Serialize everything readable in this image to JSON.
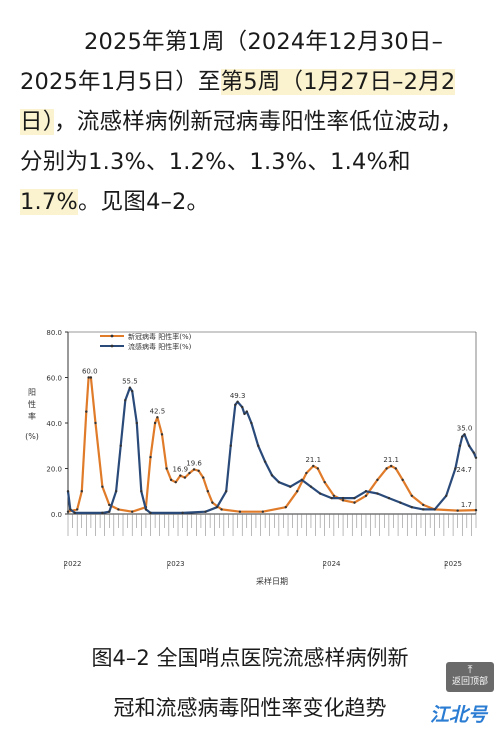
{
  "paragraph": {
    "seg1": "2025年第1周（2024年12月30日–2025年1月5日）至",
    "seg2": "第5周（1月27日–2月2日）",
    "seg3": "，流感样病例新冠病毒阳性率低位波动，分别为1.3%、1.2%、1.3%、1.4%和",
    "seg4": "1.7%",
    "seg5": "。见图4–2。"
  },
  "chart_data": {
    "type": "line",
    "ylabel": "阳性率(%)",
    "xlabel": "采样日期",
    "ylim": [
      0,
      80
    ],
    "yticks": [
      "0.0",
      "20.0",
      "40.0",
      "60.0",
      "80.0"
    ],
    "years": [
      "2022",
      "2023",
      "2024",
      "2025"
    ],
    "series": [
      {
        "name": "新冠病毒 阳性率(%)",
        "color": "#e07b2a",
        "points": [
          [
            0,
            1
          ],
          [
            4,
            2
          ],
          [
            6,
            10
          ],
          [
            8,
            45
          ],
          [
            9,
            60
          ],
          [
            10,
            60
          ],
          [
            12,
            40
          ],
          [
            15,
            12
          ],
          [
            18,
            4
          ],
          [
            22,
            2
          ],
          [
            28,
            1
          ],
          [
            34,
            3
          ],
          [
            36,
            25
          ],
          [
            38,
            40
          ],
          [
            39,
            42.5
          ],
          [
            41,
            35
          ],
          [
            43,
            20
          ],
          [
            45,
            15
          ],
          [
            47,
            14
          ],
          [
            49,
            16.9
          ],
          [
            51,
            16
          ],
          [
            53,
            18
          ],
          [
            55,
            19.6
          ],
          [
            57,
            19
          ],
          [
            59,
            16
          ],
          [
            61,
            10
          ],
          [
            63,
            5
          ],
          [
            67,
            2
          ],
          [
            75,
            1
          ],
          [
            85,
            1
          ],
          [
            95,
            3
          ],
          [
            100,
            10
          ],
          [
            104,
            18
          ],
          [
            107,
            21.1
          ],
          [
            109,
            20
          ],
          [
            112,
            14
          ],
          [
            116,
            8
          ],
          [
            120,
            6
          ],
          [
            125,
            5
          ],
          [
            130,
            8
          ],
          [
            135,
            15
          ],
          [
            139,
            20
          ],
          [
            141,
            21.1
          ],
          [
            143,
            20
          ],
          [
            146,
            15
          ],
          [
            150,
            8
          ],
          [
            155,
            4
          ],
          [
            160,
            2
          ],
          [
            170,
            1.5
          ],
          [
            178,
            1.7
          ]
        ]
      },
      {
        "name": "流感病毒 阳性率(%)",
        "color": "#2a4a7a",
        "points": [
          [
            0,
            10
          ],
          [
            1,
            2
          ],
          [
            3,
            0.5
          ],
          [
            15,
            0.5
          ],
          [
            18,
            1
          ],
          [
            21,
            10
          ],
          [
            23,
            30
          ],
          [
            25,
            50
          ],
          [
            27,
            55.5
          ],
          [
            28,
            54
          ],
          [
            30,
            40
          ],
          [
            32,
            10
          ],
          [
            34,
            2
          ],
          [
            36,
            0.5
          ],
          [
            50,
            0.5
          ],
          [
            60,
            1
          ],
          [
            65,
            3
          ],
          [
            69,
            10
          ],
          [
            71,
            30
          ],
          [
            73,
            48
          ],
          [
            74,
            49.3
          ],
          [
            76,
            47
          ],
          [
            77,
            44
          ],
          [
            78,
            45
          ],
          [
            80,
            40
          ],
          [
            83,
            30
          ],
          [
            86,
            23
          ],
          [
            89,
            17
          ],
          [
            92,
            14
          ],
          [
            97,
            12
          ],
          [
            102,
            15
          ],
          [
            106,
            12
          ],
          [
            110,
            9
          ],
          [
            115,
            7
          ],
          [
            120,
            7
          ],
          [
            125,
            7
          ],
          [
            130,
            10
          ],
          [
            135,
            9
          ],
          [
            140,
            7
          ],
          [
            145,
            5
          ],
          [
            150,
            3
          ],
          [
            155,
            2
          ],
          [
            160,
            2
          ],
          [
            165,
            8
          ],
          [
            169,
            20
          ],
          [
            171,
            30
          ],
          [
            172,
            34
          ],
          [
            173,
            35
          ],
          [
            175,
            30
          ],
          [
            177,
            27
          ],
          [
            178,
            24.7
          ]
        ]
      }
    ],
    "labels": [
      {
        "text": "60.0",
        "series": 0,
        "x": 9.5,
        "y": 60
      },
      {
        "text": "55.5",
        "series": 1,
        "x": 27,
        "y": 55.5
      },
      {
        "text": "42.5",
        "series": 0,
        "x": 39,
        "y": 42.5
      },
      {
        "text": "16.9",
        "series": 0,
        "x": 49,
        "y": 16.9
      },
      {
        "text": "19.6",
        "series": 0,
        "x": 55,
        "y": 19.6
      },
      {
        "text": "49.3",
        "series": 1,
        "x": 74,
        "y": 49.3
      },
      {
        "text": "21.1",
        "series": 0,
        "x": 107,
        "y": 21.1
      },
      {
        "text": "21.1",
        "series": 0,
        "x": 141,
        "y": 21.1
      },
      {
        "text": "35.0",
        "series": 1,
        "x": 173,
        "y": 35
      },
      {
        "text": "24.7",
        "series": 1,
        "x": 178,
        "y": 24.7
      },
      {
        "text": "1.7",
        "series": 0,
        "x": 178,
        "y": 1.7
      }
    ],
    "xrange": [
      0,
      178
    ]
  },
  "caption": {
    "line1": "图4–2 全国哨点医院流感样病例新",
    "line2": "冠和流感病毒阳性率变化趋势"
  },
  "badge": {
    "text": "返回顶部"
  },
  "logo": {
    "text": "江北号"
  }
}
